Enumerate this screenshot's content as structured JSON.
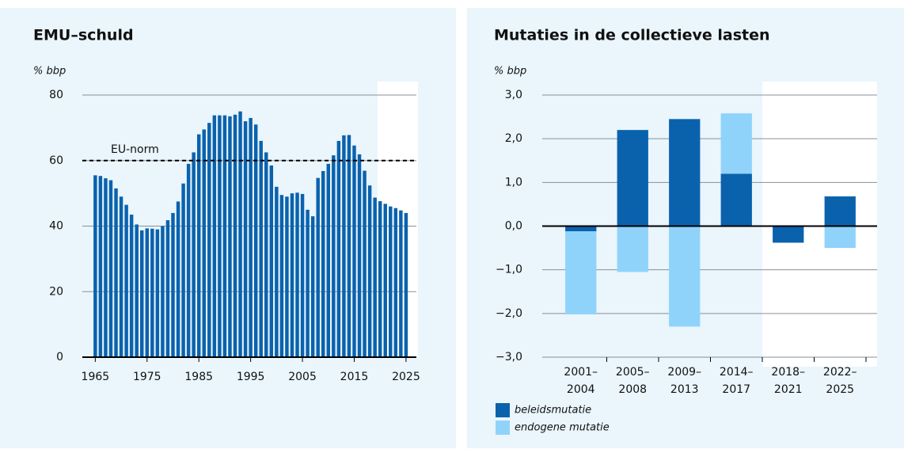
{
  "chart_data": [
    {
      "type": "bar",
      "title": "EMU–schuld",
      "ylabel": "% bbp",
      "color": "#0a62ad",
      "x": [
        1965,
        1966,
        1967,
        1968,
        1969,
        1970,
        1971,
        1972,
        1973,
        1974,
        1975,
        1976,
        1977,
        1978,
        1979,
        1980,
        1981,
        1982,
        1983,
        1984,
        1985,
        1986,
        1987,
        1988,
        1989,
        1990,
        1991,
        1992,
        1993,
        1994,
        1995,
        1996,
        1997,
        1998,
        1999,
        2000,
        2001,
        2002,
        2003,
        2004,
        2005,
        2006,
        2007,
        2008,
        2009,
        2010,
        2011,
        2012,
        2013,
        2014,
        2015,
        2016,
        2017,
        2018,
        2019,
        2020,
        2021,
        2022,
        2023,
        2024,
        2025
      ],
      "values": [
        55.5,
        55.3,
        54.6,
        54,
        51.5,
        49,
        46.5,
        43.5,
        40.5,
        38.7,
        39.3,
        39.2,
        39,
        40,
        41.8,
        44,
        47.5,
        53,
        59,
        62.5,
        68,
        69.5,
        71.5,
        73.8,
        73.8,
        73.8,
        73.5,
        74,
        75,
        72,
        73,
        71,
        66,
        62.5,
        58.5,
        52,
        49.5,
        49,
        50,
        50.2,
        49.8,
        45,
        43,
        54.7,
        56.8,
        59,
        61.6,
        66,
        67.7,
        67.8,
        64.6,
        61.9,
        56.9,
        52.4,
        48.7,
        47.6,
        46.8,
        46,
        45.5,
        44.8,
        44
      ],
      "xlim": [
        1962.5,
        2027
      ],
      "xticks": [
        1965,
        1975,
        1985,
        1995,
        2005,
        2015,
        2025
      ],
      "ylim": [
        0,
        80
      ],
      "yticks": [
        0,
        20,
        40,
        60,
        80
      ],
      "grid": true,
      "reference_line": {
        "value": 60,
        "label": "EU-norm"
      },
      "shade_from": 2019.5
    },
    {
      "type": "stacked_bar",
      "title": "Mutaties in de collectieve lasten",
      "ylabel": "% bbp",
      "categories": [
        [
          "2001–",
          "2004"
        ],
        [
          "2005–",
          "2008"
        ],
        [
          "2009–",
          "2013"
        ],
        [
          "2014–",
          "2017"
        ],
        [
          "2018–",
          "2021"
        ],
        [
          "2022–",
          "2025"
        ]
      ],
      "series": [
        {
          "name": "beleidsmutatie",
          "color": "#0a62ad",
          "values": [
            -0.12,
            2.2,
            2.45,
            1.2,
            -0.38,
            0.68
          ]
        },
        {
          "name": "endogene mutatie",
          "color": "#8fd3fb",
          "values": [
            -1.9,
            -1.05,
            -2.3,
            1.38,
            0,
            -0.5
          ]
        }
      ],
      "ylim": [
        -3,
        3
      ],
      "yticks": [
        {
          "value": -3,
          "label": "−3,0"
        },
        {
          "value": -2,
          "label": "−2,0"
        },
        {
          "value": -1,
          "label": "−1,0"
        },
        {
          "value": 0,
          "label": "0,0"
        },
        {
          "value": 1,
          "label": "1,0"
        },
        {
          "value": 2,
          "label": "2,0"
        },
        {
          "value": 3,
          "label": "3,0"
        }
      ],
      "grid": true,
      "legend": "bottom-left",
      "shade_from": 4
    }
  ]
}
